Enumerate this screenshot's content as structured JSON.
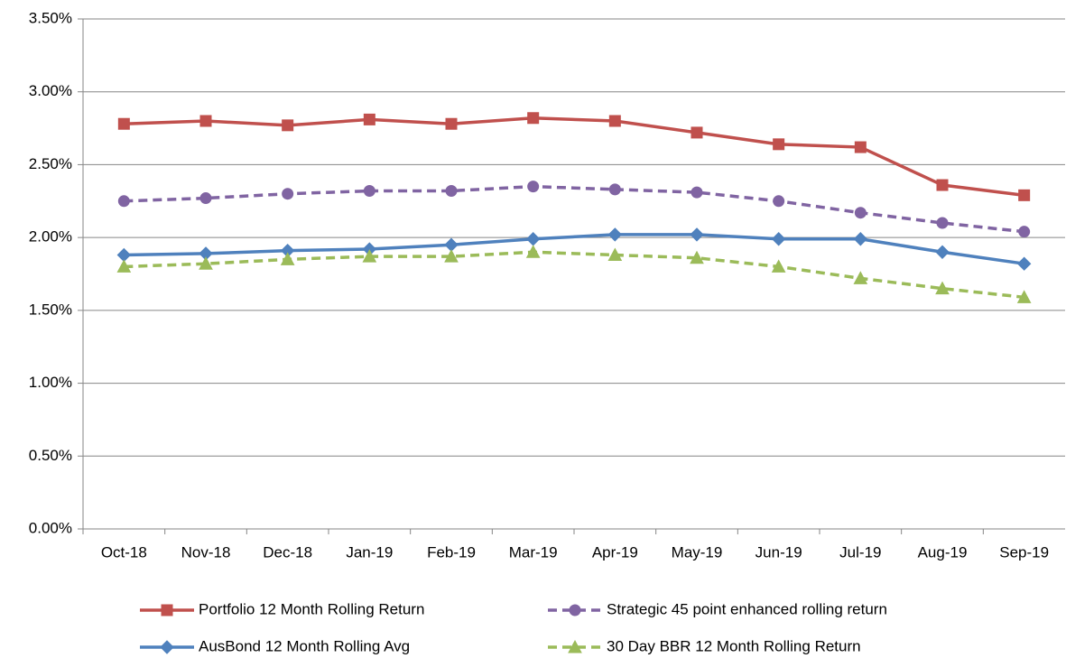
{
  "chart_data": {
    "type": "line",
    "categories": [
      "Oct-18",
      "Nov-18",
      "Dec-18",
      "Jan-19",
      "Feb-19",
      "Mar-19",
      "Apr-19",
      "May-19",
      "Jun-19",
      "Jul-19",
      "Aug-19",
      "Sep-19"
    ],
    "series": [
      {
        "name": "Portfolio 12 Month Rolling Return",
        "color": "#c0504d",
        "marker": "square",
        "dashed": false,
        "values": [
          2.78,
          2.8,
          2.77,
          2.81,
          2.78,
          2.82,
          2.8,
          2.72,
          2.64,
          2.62,
          2.36,
          2.29
        ]
      },
      {
        "name": "Strategic 45 point enhanced rolling return",
        "color": "#8064a2",
        "marker": "circle",
        "dashed": true,
        "values": [
          2.25,
          2.27,
          2.3,
          2.32,
          2.32,
          2.35,
          2.33,
          2.31,
          2.25,
          2.17,
          2.1,
          2.04
        ]
      },
      {
        "name": "AusBond 12 Month Rolling Avg",
        "color": "#4f81bd",
        "marker": "diamond",
        "dashed": false,
        "values": [
          1.88,
          1.89,
          1.91,
          1.92,
          1.95,
          1.99,
          2.02,
          2.02,
          1.99,
          1.99,
          1.9,
          1.82
        ]
      },
      {
        "name": "30 Day BBR 12 Month Rolling Return",
        "color": "#9bbb59",
        "marker": "triangle",
        "dashed": true,
        "values": [
          1.8,
          1.82,
          1.85,
          1.87,
          1.87,
          1.9,
          1.88,
          1.86,
          1.8,
          1.72,
          1.65,
          1.59
        ]
      }
    ],
    "ylim": [
      0,
      3.5
    ],
    "yticks": [
      {
        "value": 0,
        "label": "0.00%"
      },
      {
        "value": 0.5,
        "label": "0.50%"
      },
      {
        "value": 1,
        "label": "1.00%"
      },
      {
        "value": 1.5,
        "label": "1.50%"
      },
      {
        "value": 2,
        "label": "2.00%"
      },
      {
        "value": 2.5,
        "label": "2.50%"
      },
      {
        "value": 3,
        "label": "3.00%"
      },
      {
        "value": 3.5,
        "label": "3.50%"
      }
    ],
    "grid": true
  }
}
